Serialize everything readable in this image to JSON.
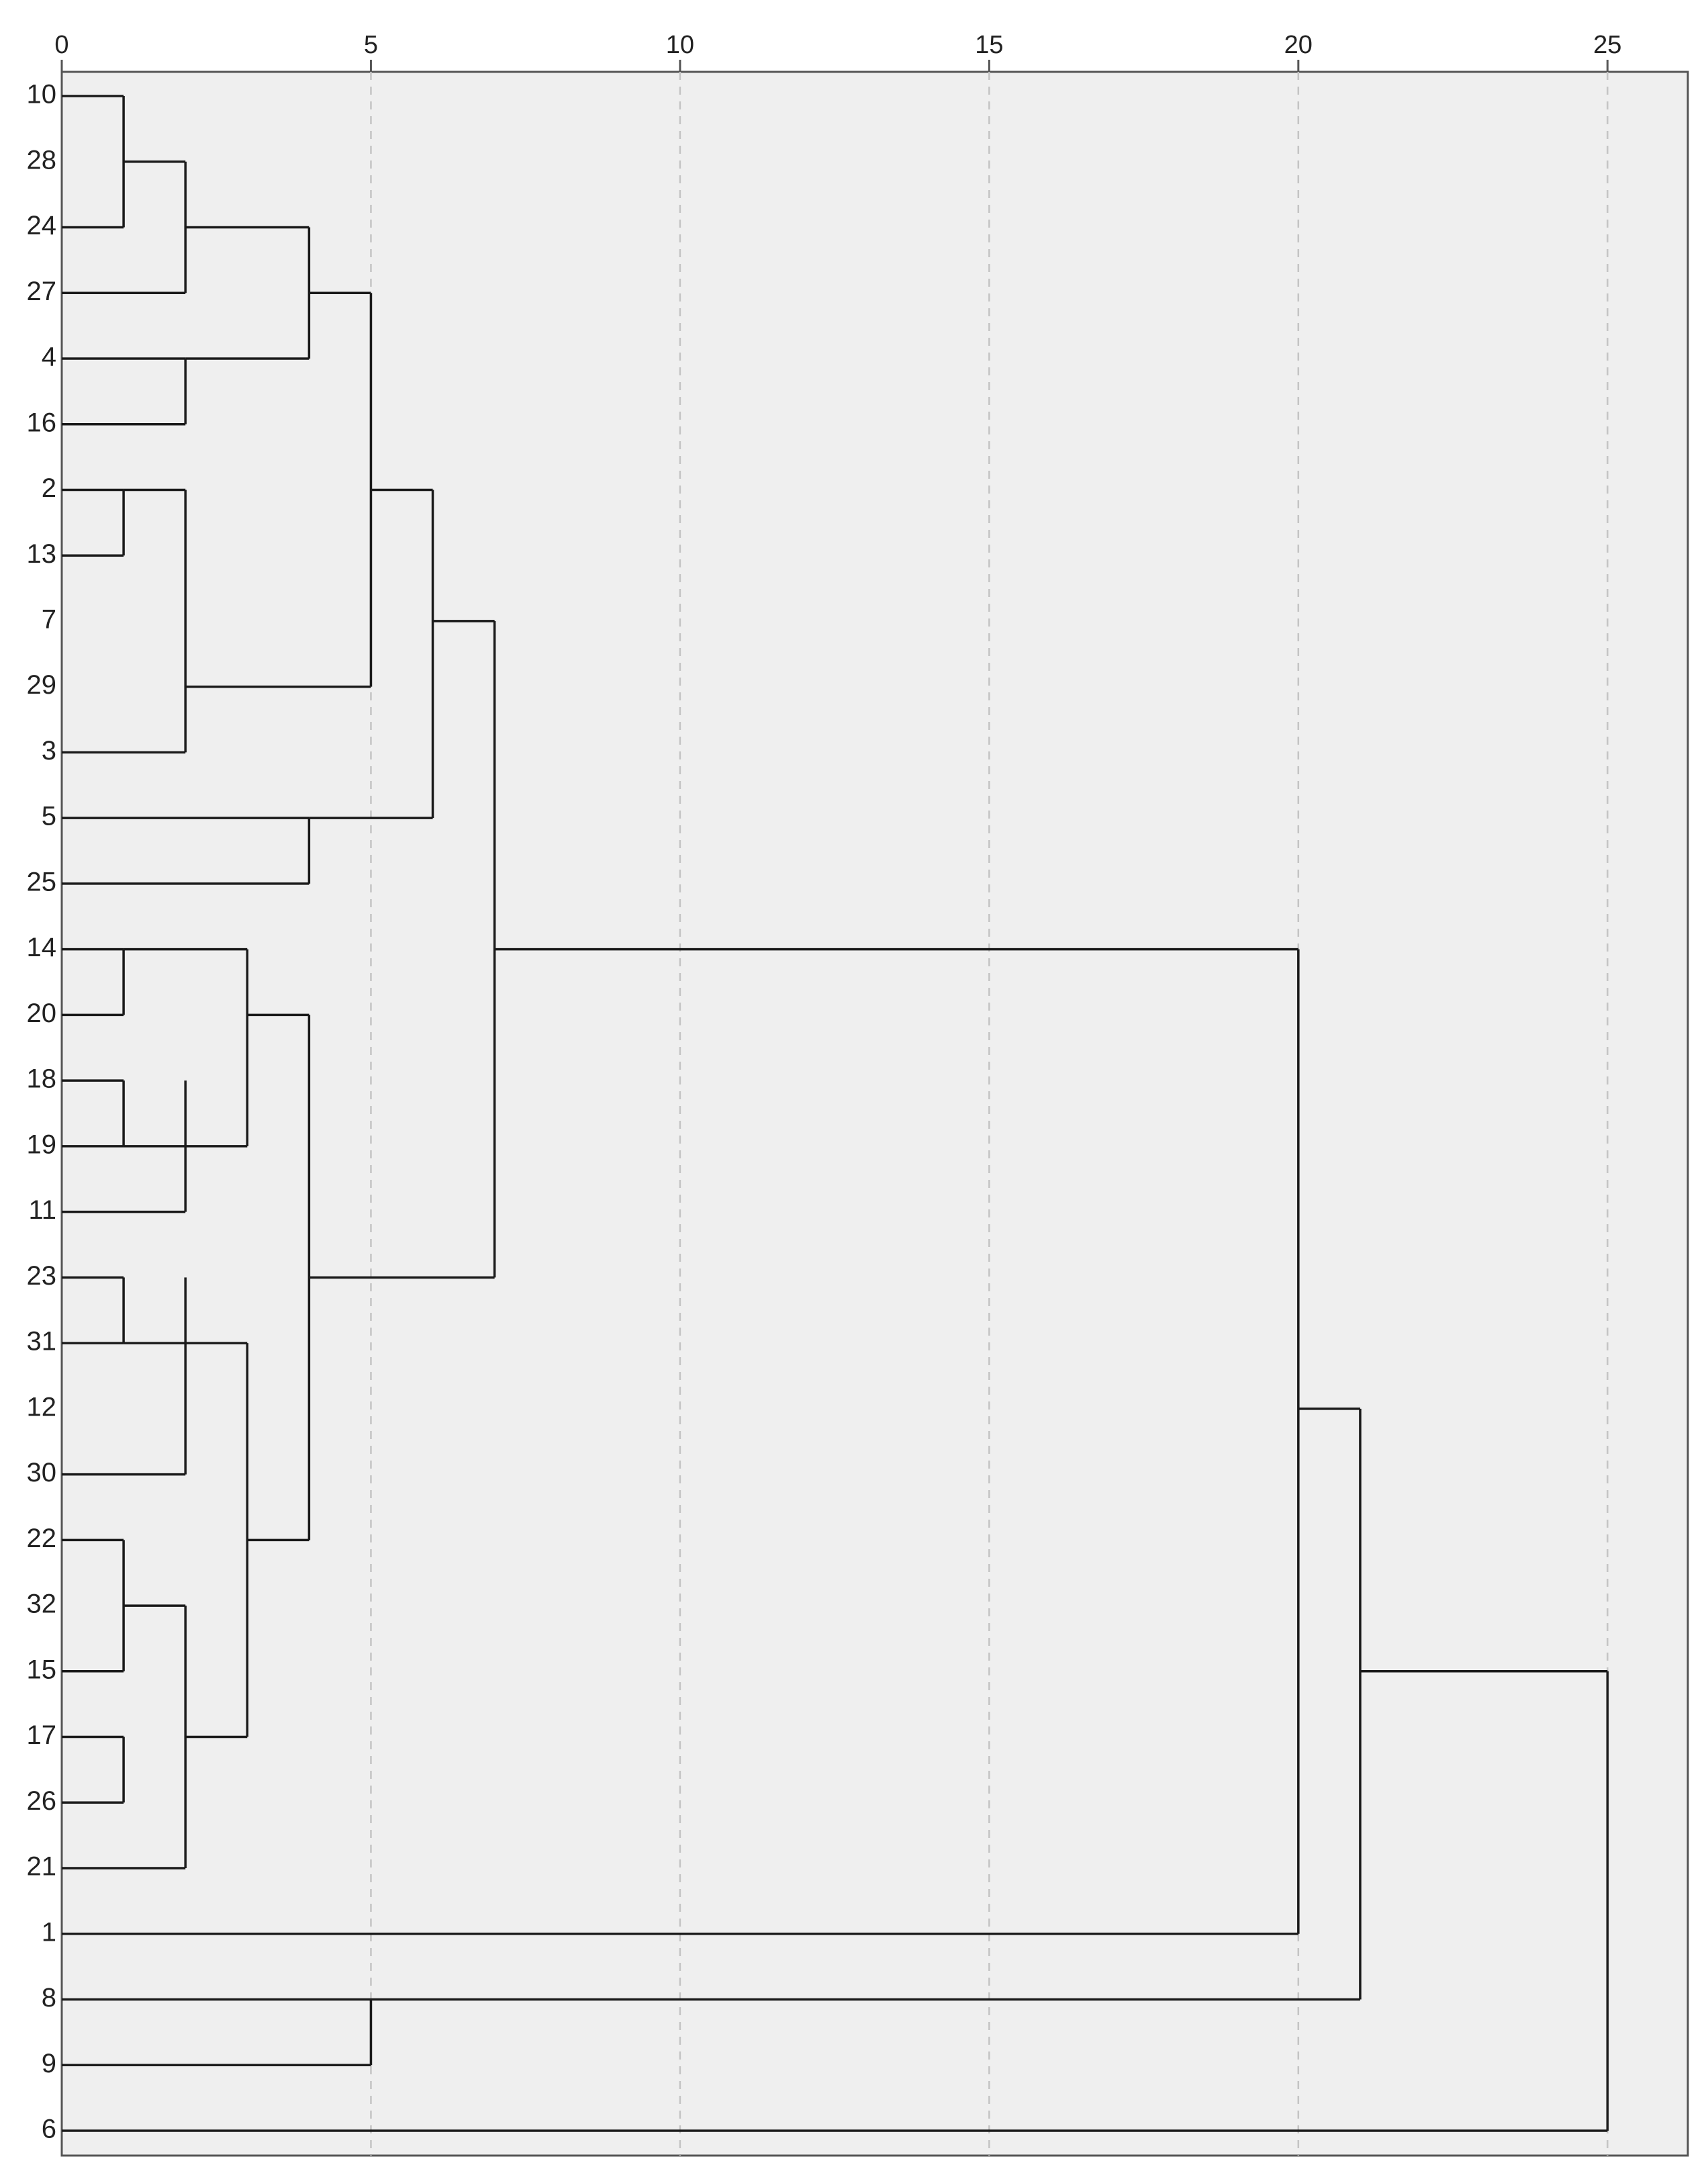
{
  "chart_data": {
    "type": "dendrogram",
    "orientation": "horizontal",
    "title": "",
    "xlabel": "",
    "ylabel": "",
    "xlim": [
      0,
      26.3
    ],
    "x_ticks": [
      0,
      5,
      10,
      15,
      20,
      25
    ],
    "x_tick_labels": [
      "0",
      "5",
      "10",
      "15",
      "20",
      "25"
    ],
    "grid": "vertical dashed at x ticks",
    "leaves": [
      "10",
      "28",
      "24",
      "27",
      "4",
      "16",
      "2",
      "13",
      "7",
      "29",
      "3",
      "5",
      "25",
      "14",
      "20",
      "18",
      "19",
      "11",
      "23",
      "31",
      "12",
      "30",
      "22",
      "32",
      "15",
      "17",
      "26",
      "21",
      "1",
      "8",
      "9",
      "6"
    ],
    "links": [
      {
        "x": 1,
        "y_from": 0,
        "y_to": 2,
        "join_y": 1
      },
      {
        "x": 2,
        "y_from": 1,
        "y_to": 3,
        "join_y": 2
      },
      {
        "x": 2,
        "y_from": 4,
        "y_to": 5,
        "join_y": 4
      },
      {
        "x": 4,
        "y_from": 2,
        "y_to": 4,
        "join_y": 3
      },
      {
        "x": 1,
        "y_from": 6,
        "y_to": 7,
        "join_y": 6
      },
      {
        "x": 2,
        "y_from": 6,
        "y_to": 10,
        "join_y": 9
      },
      {
        "x": 5,
        "y_from": 3,
        "y_to": 9,
        "join_y": 6
      },
      {
        "x": 4,
        "y_from": 11,
        "y_to": 12,
        "join_y": 11
      },
      {
        "x": 6,
        "y_from": 6,
        "y_to": 11,
        "join_y": 8
      },
      {
        "x": 1,
        "y_from": 13,
        "y_to": 14,
        "join_y": 13
      },
      {
        "x": 1,
        "y_from": 15,
        "y_to": 16,
        "join_y": 16
      },
      {
        "x": 2,
        "y_from": 15,
        "y_to": 17,
        "join_y": 16
      },
      {
        "x": 3,
        "y_from": 13,
        "y_to": 16,
        "join_y": 14
      },
      {
        "x": 1,
        "y_from": 18,
        "y_to": 19,
        "join_y": 19
      },
      {
        "x": 2,
        "y_from": 18,
        "y_to": 21,
        "join_y": 19
      },
      {
        "x": 1,
        "y_from": 22,
        "y_to": 24,
        "join_y": 23
      },
      {
        "x": 1,
        "y_from": 25,
        "y_to": 26,
        "join_y": 25
      },
      {
        "x": 2,
        "y_from": 23,
        "y_to": 27,
        "join_y": 25
      },
      {
        "x": 3,
        "y_from": 19,
        "y_to": 25,
        "join_y": 22
      },
      {
        "x": 4,
        "y_from": 14,
        "y_to": 22,
        "join_y": 18
      },
      {
        "x": 7,
        "y_from": 8,
        "y_to": 18,
        "join_y": 13
      },
      {
        "x": 20,
        "y_from": 13,
        "y_to": 28,
        "join_y": 20
      },
      {
        "x": 5,
        "y_from": 29,
        "y_to": 30,
        "join_y": 29
      },
      {
        "x": 21,
        "y_from": 20,
        "y_to": 29,
        "join_y": 24
      },
      {
        "x": 25,
        "y_from": 24,
        "y_to": 31,
        "join_y": 31
      }
    ],
    "colors": {
      "plot_background": "#efefef",
      "frame": "#555555",
      "line": "#1a1a1a",
      "grid": "#c4c4c4"
    }
  }
}
